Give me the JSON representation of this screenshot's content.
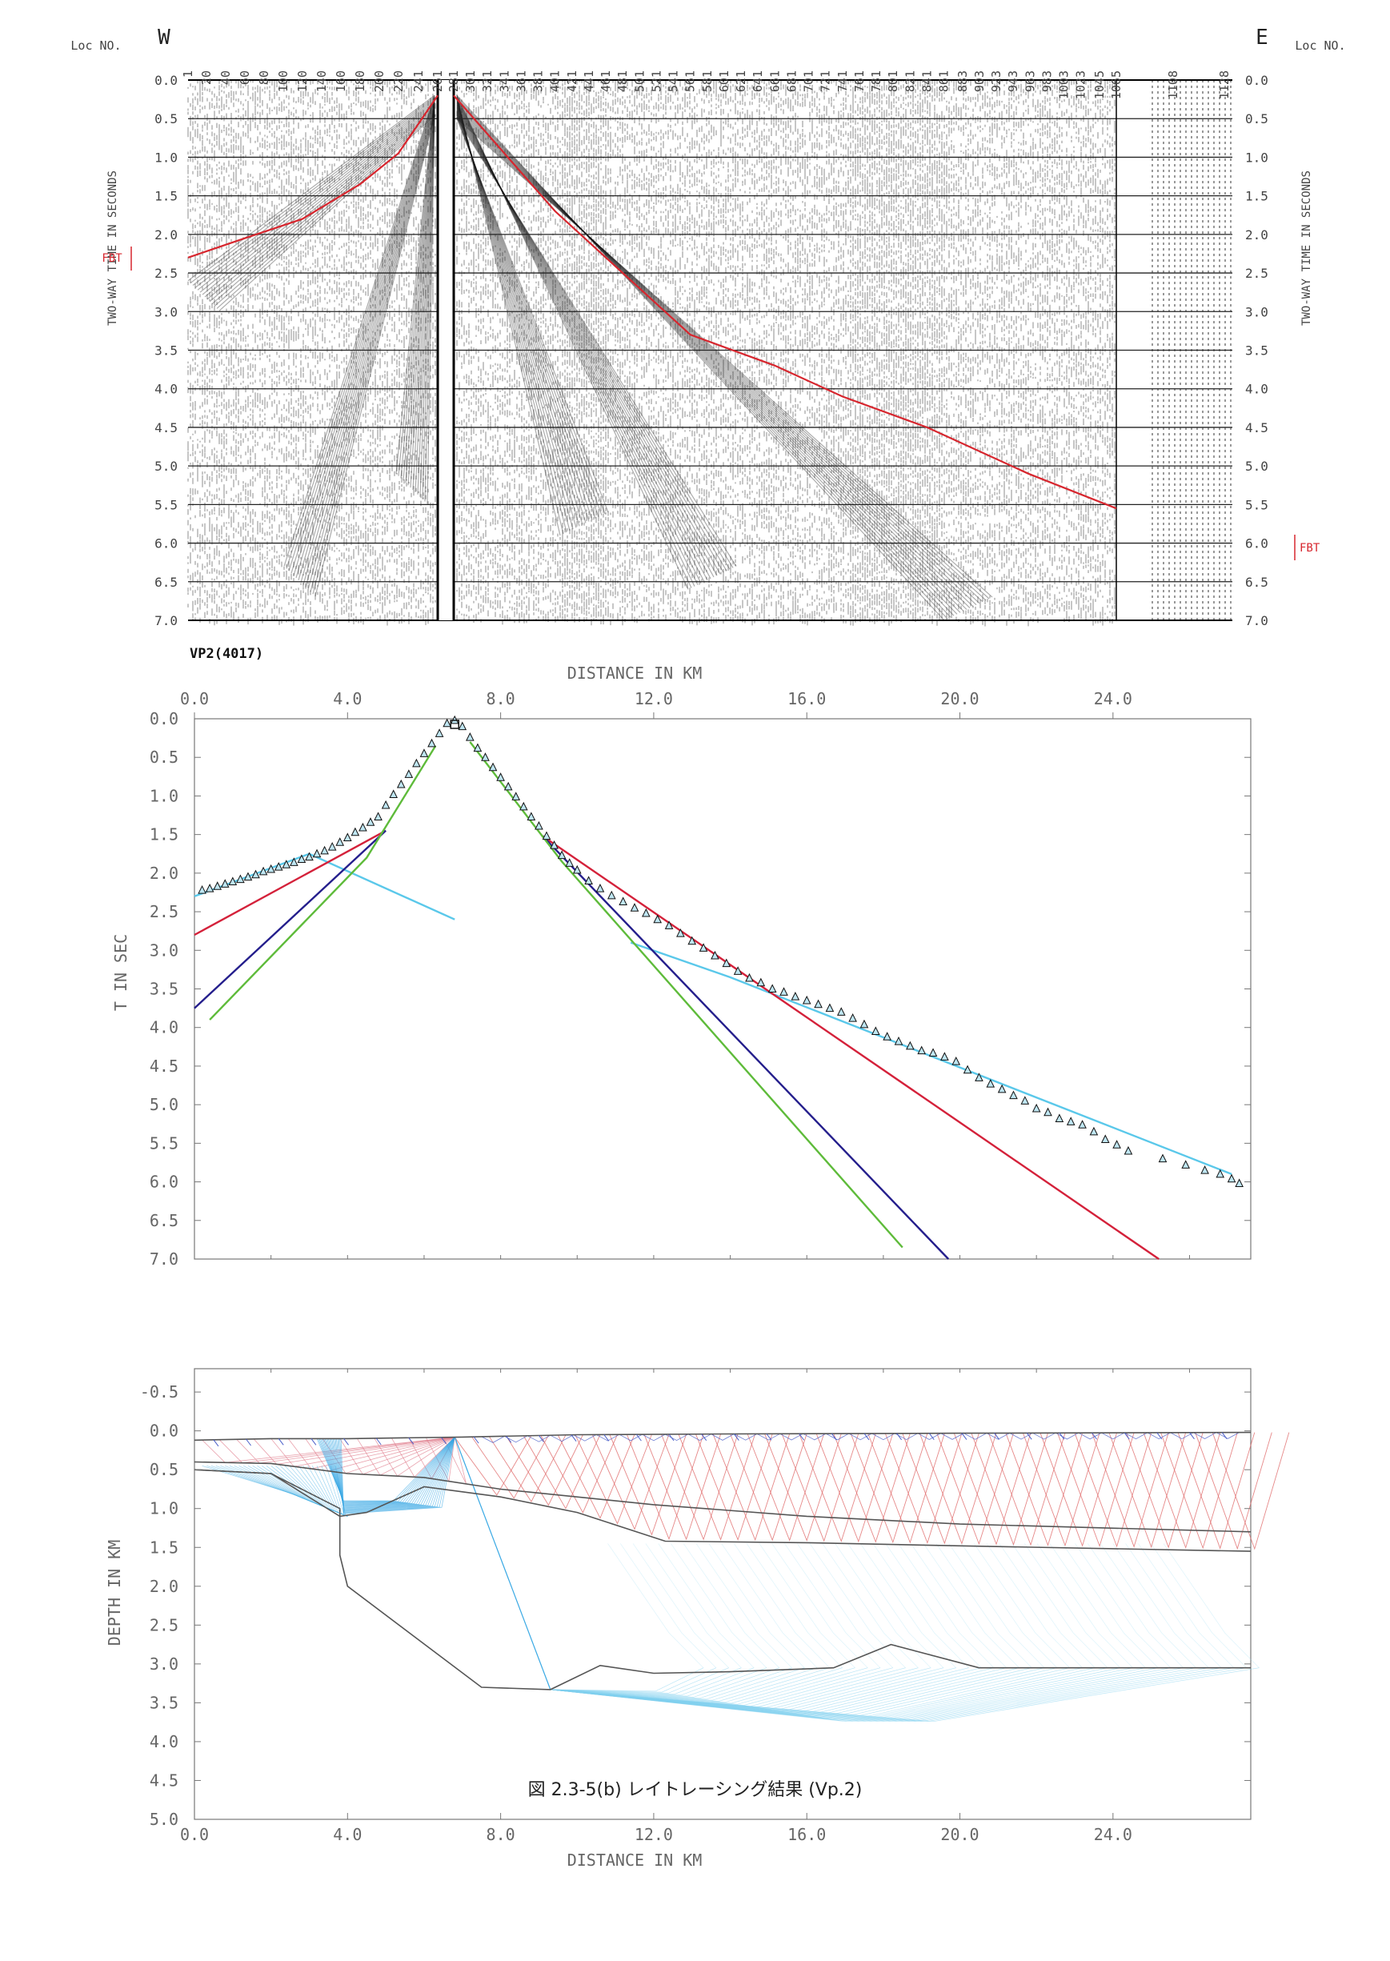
{
  "caption": "図 2.3-5(b) レイトレーシング結果 (Vp.2)",
  "chart_data": [
    {
      "type": "heatmap",
      "kind": "seismic-shot-record",
      "west_label": "W",
      "east_label": "E",
      "loc_label": "Loc NO.",
      "shot_label": "VP2(4017)",
      "fbt_label": "FBT",
      "ylabel": "TWO-WAY TIME IN SECONDS",
      "ylim": [
        0.0,
        7.0
      ],
      "y_ticks": [
        "0.0",
        "0.5",
        "1.0",
        "1.5",
        "2.0",
        "2.5",
        "3.0",
        "3.5",
        "4.0",
        "4.5",
        "5.0",
        "5.5",
        "6.0",
        "6.5",
        "7.0"
      ],
      "loc_numbers": [
        "1",
        "20",
        "40",
        "60",
        "80",
        "100",
        "120",
        "140",
        "160",
        "180",
        "200",
        "220",
        "241",
        "261",
        "281",
        "301",
        "321",
        "341",
        "361",
        "381",
        "401",
        "421",
        "441",
        "461",
        "481",
        "501",
        "521",
        "541",
        "561",
        "581",
        "601",
        "621",
        "641",
        "661",
        "681",
        "701",
        "721",
        "741",
        "761",
        "781",
        "801",
        "821",
        "841",
        "861",
        "883",
        "903",
        "923",
        "943",
        "963",
        "983",
        "1003",
        "1023",
        "1045",
        "1065",
        "1108",
        "1128"
      ],
      "first_break_pick": {
        "west": {
          "loc": [
            1,
            60,
            120,
            180,
            220,
            261
          ],
          "t": [
            2.3,
            2.05,
            1.8,
            1.35,
            0.95,
            0.2
          ]
        },
        "east": {
          "loc": [
            281,
            321,
            401,
            461,
            561,
            661,
            741,
            841,
            961,
            1065
          ],
          "t": [
            0.2,
            0.7,
            1.7,
            2.3,
            3.3,
            3.7,
            4.1,
            4.5,
            5.1,
            5.55
          ]
        }
      }
    },
    {
      "type": "scatter",
      "title": "",
      "xlabel": "DISTANCE IN KM",
      "ylabel": "T IN SEC",
      "xlim": [
        0,
        27.6
      ],
      "ylim": [
        0.0,
        7.0
      ],
      "x_ticks": [
        "0.0",
        "4.0",
        "8.0",
        "12.0",
        "16.0",
        "20.0",
        "24.0"
      ],
      "y_ticks": [
        "0.0",
        "0.5",
        "1.0",
        "1.5",
        "2.0",
        "2.5",
        "3.0",
        "3.5",
        "4.0",
        "4.5",
        "5.0",
        "5.5",
        "6.0",
        "6.5",
        "7.0"
      ],
      "shot_x": 6.8,
      "observed": {
        "x": [
          0.2,
          0.4,
          0.6,
          0.8,
          1.0,
          1.2,
          1.4,
          1.6,
          1.8,
          2.0,
          2.2,
          2.4,
          2.6,
          2.8,
          3.0,
          3.2,
          3.4,
          3.6,
          3.8,
          4.0,
          4.2,
          4.4,
          4.6,
          4.8,
          5.0,
          5.2,
          5.4,
          5.6,
          5.8,
          6.0,
          6.2,
          6.4,
          6.6,
          6.8,
          7.0,
          7.2,
          7.4,
          7.6,
          7.8,
          8.0,
          8.2,
          8.4,
          8.6,
          8.8,
          9.0,
          9.2,
          9.4,
          9.6,
          9.8,
          10.0,
          10.3,
          10.6,
          10.9,
          11.2,
          11.5,
          11.8,
          12.1,
          12.4,
          12.7,
          13.0,
          13.3,
          13.6,
          13.9,
          14.2,
          14.5,
          14.8,
          15.1,
          15.4,
          15.7,
          16.0,
          16.3,
          16.6,
          16.9,
          17.2,
          17.5,
          17.8,
          18.1,
          18.4,
          18.7,
          19.0,
          19.3,
          19.6,
          19.9,
          20.2,
          20.5,
          20.8,
          21.1,
          21.4,
          21.7,
          22.0,
          22.3,
          22.6,
          22.9,
          23.2,
          23.5,
          23.8,
          24.1,
          24.4,
          25.3,
          25.9,
          26.4,
          26.8,
          27.1,
          27.3
        ],
        "t": [
          2.22,
          2.2,
          2.17,
          2.14,
          2.11,
          2.08,
          2.05,
          2.02,
          1.98,
          1.95,
          1.92,
          1.89,
          1.86,
          1.82,
          1.79,
          1.75,
          1.71,
          1.66,
          1.6,
          1.54,
          1.47,
          1.41,
          1.34,
          1.27,
          1.12,
          0.98,
          0.85,
          0.72,
          0.58,
          0.45,
          0.32,
          0.19,
          0.06,
          0.02,
          0.1,
          0.24,
          0.38,
          0.5,
          0.63,
          0.76,
          0.88,
          1.01,
          1.14,
          1.27,
          1.39,
          1.52,
          1.64,
          1.77,
          1.87,
          1.96,
          2.1,
          2.2,
          2.29,
          2.37,
          2.45,
          2.52,
          2.6,
          2.68,
          2.78,
          2.88,
          2.97,
          3.07,
          3.17,
          3.27,
          3.36,
          3.42,
          3.5,
          3.54,
          3.6,
          3.65,
          3.7,
          3.75,
          3.8,
          3.88,
          3.96,
          4.05,
          4.12,
          4.18,
          4.24,
          4.3,
          4.33,
          4.38,
          4.44,
          4.55,
          4.65,
          4.73,
          4.8,
          4.88,
          4.95,
          5.05,
          5.1,
          5.18,
          5.22,
          5.26,
          5.35,
          5.45,
          5.52,
          5.6,
          5.7,
          5.78,
          5.85,
          5.9,
          5.96,
          6.02
        ]
      },
      "series": [
        {
          "color": "#5ac8ea",
          "segments": [
            {
              "x": [
                0.0,
                3.0,
                6.8
              ],
              "t": [
                2.3,
                1.75,
                2.6
              ]
            },
            {
              "x": [
                11.4,
                14.0,
                27.1
              ],
              "t": [
                2.9,
                3.35,
                5.9
              ]
            }
          ]
        },
        {
          "color": "#d4213a",
          "segments": [
            {
              "x": [
                0.0,
                5.0
              ],
              "t": [
                2.8,
                1.45
              ]
            },
            {
              "x": [
                9.1,
                25.2
              ],
              "t": [
                1.52,
                7.0
              ]
            }
          ]
        },
        {
          "color": "#241e8c",
          "segments": [
            {
              "x": [
                0.0,
                5.0
              ],
              "t": [
                3.75,
                1.45
              ]
            },
            {
              "x": [
                9.1,
                19.7
              ],
              "t": [
                1.52,
                7.0
              ]
            }
          ]
        },
        {
          "color": "#5ebb3a",
          "segments": [
            {
              "x": [
                0.4,
                4.5,
                6.3
              ],
              "t": [
                3.9,
                1.8,
                0.35
              ]
            },
            {
              "x": [
                7.2,
                9.6,
                18.5
              ],
              "t": [
                0.3,
                1.85,
                6.85
              ]
            }
          ]
        }
      ]
    },
    {
      "type": "line",
      "kind": "ray-tracing-model",
      "title": "",
      "xlabel": "DISTANCE IN KM",
      "ylabel": "DEPTH IN KM",
      "xlim": [
        0,
        27.6
      ],
      "ylim": [
        -0.8,
        5.0
      ],
      "x_ticks": [
        "0.0",
        "4.0",
        "8.0",
        "12.0",
        "16.0",
        "20.0",
        "24.0"
      ],
      "y_ticks": [
        "-0.5",
        "0.0",
        "0.5",
        "1.0",
        "1.5",
        "2.0",
        "2.5",
        "3.0",
        "3.5",
        "4.0",
        "4.5",
        "5.0"
      ],
      "layers": [
        {
          "name": "",
          "x": [
            0,
            2,
            4,
            7,
            10,
            14,
            20,
            27.6
          ],
          "z": [
            0.12,
            0.1,
            0.1,
            0.08,
            0.05,
            0.04,
            0.03,
            0.02
          ]
        },
        {
          "name": "",
          "x": [
            0,
            2,
            4,
            6,
            8,
            12,
            16,
            20,
            27.6
          ],
          "z": [
            0.4,
            0.42,
            0.55,
            0.6,
            0.75,
            0.95,
            1.1,
            1.2,
            1.3
          ]
        },
        {
          "name": "",
          "x": [
            0,
            2,
            3.8,
            4.5,
            6,
            8,
            10,
            12.3,
            16,
            20,
            27.6
          ],
          "z": [
            0.5,
            0.55,
            1.1,
            1.05,
            0.72,
            0.85,
            1.05,
            1.42,
            1.44,
            1.48,
            1.55
          ]
        },
        {
          "name": "",
          "x": [
            0,
            2,
            3.8,
            3.8,
            4.0,
            7.5,
            9.3,
            10.6,
            12.0,
            14.0,
            16.7,
            18.2,
            20.5,
            27.6
          ],
          "z": [
            0.5,
            0.55,
            1.0,
            1.6,
            2.0,
            3.3,
            3.33,
            3.02,
            3.12,
            3.1,
            3.05,
            2.75,
            3.05,
            3.05
          ]
        }
      ]
    }
  ]
}
